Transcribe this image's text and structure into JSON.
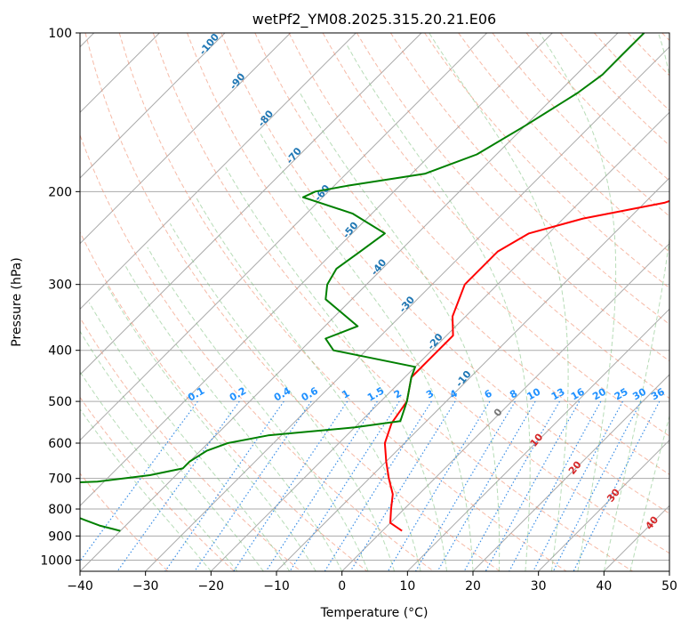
{
  "chart_data": {
    "type": "skew-t",
    "title": "wetPf2_YM08.2025.315.20.21.E06",
    "xlabel": "Temperature (°C)",
    "ylabel": "Pressure (hPa)",
    "xlim": [
      -40,
      50
    ],
    "ylim": [
      1050,
      100
    ],
    "x_ticks": [
      -40,
      -30,
      -20,
      -10,
      0,
      10,
      20,
      30,
      40,
      50
    ],
    "x_tick_labels": [
      "−40",
      "−30",
      "−20",
      "−10",
      "0",
      "10",
      "20",
      "30",
      "40",
      "50"
    ],
    "y_ticks": [
      100,
      200,
      300,
      400,
      500,
      600,
      700,
      800,
      900,
      1000
    ],
    "y_tick_labels": [
      "100",
      "200",
      "300",
      "400",
      "500",
      "600",
      "700",
      "800",
      "900",
      "1000"
    ],
    "temperature_profile": {
      "name": "Temperature",
      "color": "#ff0000",
      "points": [
        [
          100,
          6
        ],
        [
          125,
          3
        ],
        [
          150,
          2
        ],
        [
          175,
          0
        ],
        [
          195,
          -2
        ],
        [
          210,
          -7
        ],
        [
          225,
          -17
        ],
        [
          240,
          -23
        ],
        [
          260,
          -25
        ],
        [
          300,
          -25
        ],
        [
          345,
          -22
        ],
        [
          375,
          -19
        ],
        [
          400,
          -19
        ],
        [
          450,
          -19
        ],
        [
          500,
          -16
        ],
        [
          550,
          -15
        ],
        [
          600,
          -13
        ],
        [
          650,
          -10
        ],
        [
          700,
          -7
        ],
        [
          750,
          -4
        ],
        [
          800,
          -2
        ],
        [
          850,
          0
        ],
        [
          880,
          3
        ]
      ]
    },
    "dewpoint_profile": {
      "name": "Dewpoint",
      "color": "#008000",
      "points": [
        [
          100,
          -36
        ],
        [
          110,
          -36
        ],
        [
          120,
          -36
        ],
        [
          130,
          -37
        ],
        [
          150,
          -40
        ],
        [
          170,
          -43
        ],
        [
          185,
          -48
        ],
        [
          195,
          -58
        ],
        [
          200,
          -62
        ],
        [
          205,
          -63
        ],
        [
          220,
          -53
        ],
        [
          240,
          -45
        ],
        [
          260,
          -46
        ],
        [
          280,
          -47
        ],
        [
          300,
          -46
        ],
        [
          320,
          -44
        ],
        [
          360,
          -35
        ],
        [
          380,
          -38
        ],
        [
          400,
          -35
        ],
        [
          430,
          -20
        ],
        [
          450,
          -19
        ],
        [
          500,
          -16
        ],
        [
          545,
          -14
        ],
        [
          560,
          -20
        ],
        [
          580,
          -32
        ],
        [
          600,
          -37
        ],
        [
          620,
          -39
        ],
        [
          650,
          -40
        ],
        [
          670,
          -40
        ],
        [
          690,
          -44
        ],
        [
          710,
          -51
        ],
        [
          730,
          -76
        ],
        [
          740,
          -80
        ],
        [
          760,
          -80
        ],
        [
          790,
          -53
        ],
        [
          800,
          -53
        ],
        [
          820,
          -50
        ],
        [
          840,
          -47
        ],
        [
          860,
          -44
        ],
        [
          880,
          -40
        ]
      ]
    },
    "dry_adiabat_labels": [
      "-100",
      "-90",
      "-80",
      "-70",
      "-60",
      "-50",
      "-40",
      "-30",
      "-20",
      "-10"
    ],
    "moist_adiabat_labels": [
      "0",
      "10",
      "20",
      "30",
      "40"
    ],
    "mixing_ratio_labels": [
      "0.1",
      "0.2",
      "0.4",
      "0.6",
      "1",
      "1.5",
      "2",
      "3",
      "4",
      "6",
      "8",
      "10",
      "13",
      "16",
      "20",
      "25",
      "30",
      "36"
    ],
    "colors": {
      "isotherm": "#aaaaaa",
      "isobar": "#aaaaaa",
      "dry_adiabat": "#f08c6c",
      "moist_adiabat": "#7cbf7c",
      "mixing_ratio": "#3a8ee6",
      "dry_label": "#1f77b4",
      "moist_label": "#d62728",
      "mixing_label": "#1e90ff"
    }
  }
}
